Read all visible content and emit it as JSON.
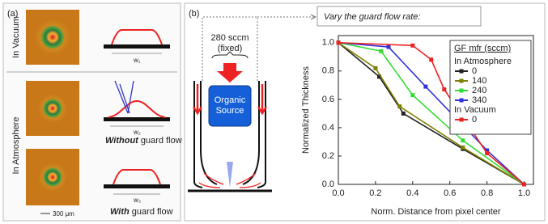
{
  "panel_a": {
    "label": "(a)",
    "vacuum_label": "In Vacuum",
    "atmosphere_label": "In Atmosphere",
    "widths": [
      "w₁",
      "w₂",
      "w₃"
    ],
    "captions": [
      {
        "emph": "Without",
        "rest": "guard flow"
      },
      {
        "emph": "With",
        "rest": "guard flow"
      }
    ],
    "scale_bar": "300 μm"
  },
  "panel_b": {
    "label": "(b)",
    "heading": "Vary the guard flow rate:",
    "flow": "280 sccm",
    "fixed": "(fixed)",
    "source": [
      "Organic",
      "Source"
    ]
  },
  "chart_data": {
    "type": "line",
    "x_label": "Norm. Distance from pixel center",
    "y_label": "Normalized Thickness",
    "legend_title": "GF mfr (sccm)",
    "xlim": [
      0,
      1.05
    ],
    "ylim": [
      0,
      1.05
    ],
    "xticks": [
      {
        "value": 0,
        "label": "0.0"
      },
      {
        "value": 0.2,
        "label": "0.2"
      },
      {
        "value": 0.4,
        "label": "0.4"
      },
      {
        "value": 0.6,
        "label": "0.6"
      },
      {
        "value": 0.8,
        "label": "0.8"
      },
      {
        "value": 1,
        "label": "1.0"
      }
    ],
    "yticks": [
      {
        "value": 0,
        "label": "0.0"
      },
      {
        "value": 0.2,
        "label": "0.2"
      },
      {
        "value": 0.4,
        "label": "0.4"
      },
      {
        "value": 0.6,
        "label": "0.6"
      },
      {
        "value": 0.8,
        "label": "0.8"
      },
      {
        "value": 1,
        "label": "1.0"
      }
    ],
    "series": [
      {
        "name": "0",
        "group": "In Atmosphere",
        "color": "#222222",
        "x": [
          0,
          0.22,
          0.35,
          0.67,
          1.0
        ],
        "values": [
          1.0,
          0.76,
          0.5,
          0.25,
          0.0
        ]
      },
      {
        "name": "140",
        "group": "In Atmosphere",
        "color": "#808000",
        "x": [
          0,
          0.2,
          0.33,
          0.67,
          1.0
        ],
        "values": [
          1.0,
          0.82,
          0.55,
          0.26,
          0.0
        ]
      },
      {
        "name": "240",
        "group": "In Atmosphere",
        "color": "#33dd33",
        "x": [
          0,
          0.23,
          0.4,
          0.67,
          1.0
        ],
        "values": [
          1.0,
          0.94,
          0.63,
          0.31,
          0.0
        ]
      },
      {
        "name": "340",
        "group": "In Atmosphere",
        "color": "#3333dd",
        "x": [
          0,
          0.27,
          0.47,
          0.8,
          1.0
        ],
        "values": [
          1.0,
          0.97,
          0.69,
          0.24,
          0.0
        ]
      },
      {
        "name": "0",
        "group": "In Vacuum",
        "color": "#ee2222",
        "x": [
          0,
          0.4,
          0.5,
          0.57,
          0.8,
          1.0
        ],
        "values": [
          1.0,
          0.98,
          0.88,
          0.67,
          0.22,
          0.0
        ]
      }
    ]
  }
}
